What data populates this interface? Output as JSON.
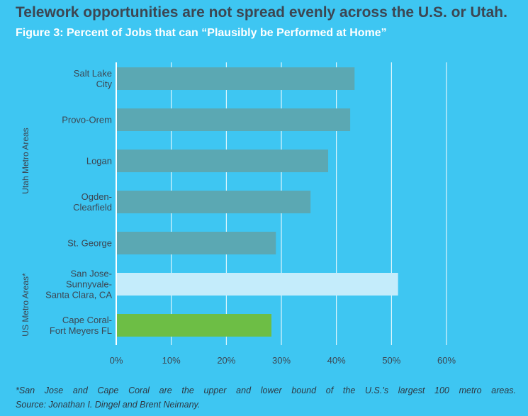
{
  "title": "Telework opportunities are not spread evenly across the U.S. or Utah.",
  "subtitle": "Figure 3: Percent of Jobs that can “Plausibly be Performed at Home”",
  "footnote": {
    "line1": "*San Jose and Cape Coral are the upper and lower bound of the U.S.’s largest 100 metro areas.",
    "line2": "Source: Jonathan I. Dingel and Brent Neimany."
  },
  "colors": {
    "background": "#3ec6f2",
    "utah_bar": "#5ba8b3",
    "upper_bound_bar": "#c4ecfb",
    "lower_bound_bar": "#6dbe45",
    "gridline": "#ffffff"
  },
  "chart_data": {
    "type": "bar",
    "orientation": "horizontal",
    "categories": [
      [
        "Salt Lake",
        "City"
      ],
      [
        "Provo-Orem"
      ],
      [
        "Logan"
      ],
      [
        "Ogden-",
        "Clearfield"
      ],
      [
        "St. George"
      ],
      [
        "San Jose-",
        "Sunnyvale-",
        "Santa Clara, CA"
      ],
      [
        "Cape Coral-",
        "Fort Meyers FL"
      ]
    ],
    "values": [
      43.3,
      42.5,
      38.5,
      35.3,
      29.0,
      51.2,
      28.2
    ],
    "groups": [
      {
        "name": "Utah Metro Areas",
        "from": 0,
        "to": 4
      },
      {
        "name": "US Metro Areas*",
        "from": 5,
        "to": 6
      }
    ],
    "bar_colors": [
      "utah_bar",
      "utah_bar",
      "utah_bar",
      "utah_bar",
      "utah_bar",
      "upper_bound_bar",
      "lower_bound_bar"
    ],
    "xlim": [
      0,
      60
    ],
    "xticks": [
      0,
      10,
      20,
      30,
      40,
      50,
      60
    ],
    "tick_suffix": "%",
    "grid": true
  }
}
